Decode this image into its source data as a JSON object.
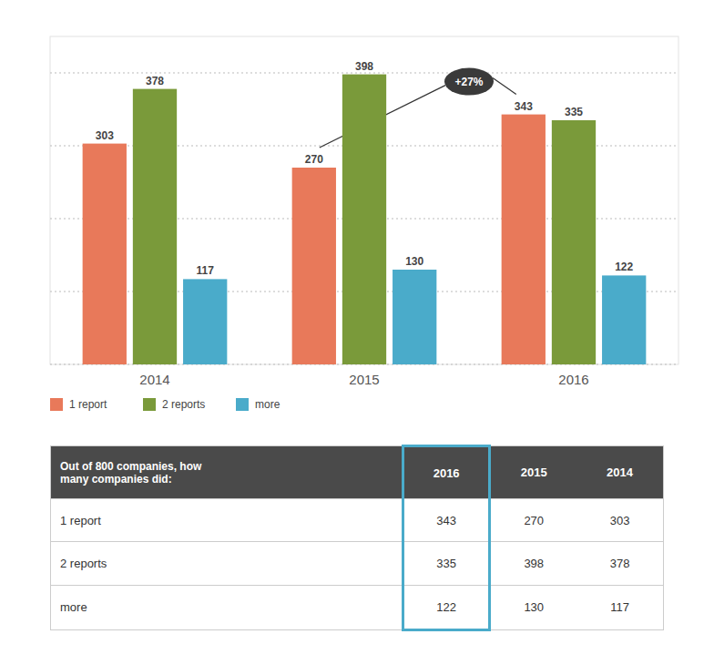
{
  "chart_data": [
    {
      "type": "bar",
      "categories": [
        "2014",
        "2015",
        "2016"
      ],
      "series": [
        {
          "name": "1 report",
          "color": "#E8795A",
          "values": [
            303,
            270,
            343
          ]
        },
        {
          "name": "2 reports",
          "color": "#7A9A3A",
          "values": [
            378,
            398,
            335
          ]
        },
        {
          "name": "more",
          "color": "#4AABCA",
          "values": [
            117,
            130,
            122
          ]
        }
      ],
      "ylim": [
        0,
        450
      ],
      "yticks": [
        0,
        100,
        200,
        300,
        400
      ],
      "grid": true,
      "tick_labels": "x",
      "data_labels": true,
      "legend": "bottom",
      "annotations": [
        {
          "text": "+27%",
          "series": "1 report",
          "from": "2015",
          "to": "2016"
        }
      ]
    },
    {
      "type": "table",
      "title": "Out of 800 companies, how many companies did:",
      "categories": [
        "1 report",
        "2 reports",
        "more"
      ],
      "series": [
        {
          "name": "2016",
          "color": "#4AABCA",
          "values": [
            343,
            335,
            122
          ]
        },
        {
          "name": "2015",
          "values": [
            270,
            398,
            130
          ]
        },
        {
          "name": "2014",
          "values": [
            303,
            378,
            117
          ]
        }
      ]
    }
  ]
}
